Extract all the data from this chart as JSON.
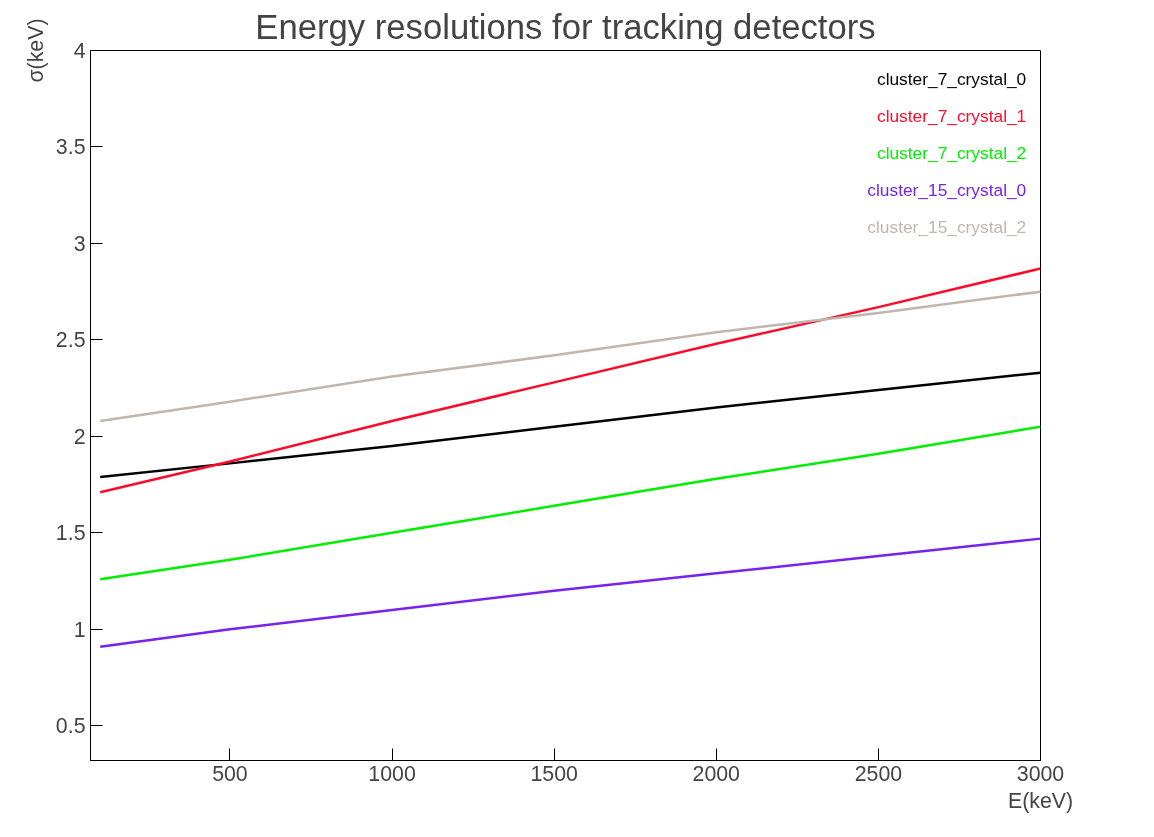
{
  "chart_data": {
    "type": "line",
    "title": "Energy resolutions for tracking detectors",
    "xlabel": "E(keV)",
    "ylabel": "σ(keV)",
    "x": [
      100,
      500,
      1000,
      1500,
      2000,
      2500,
      3000
    ],
    "series": [
      {
        "name": "cluster_7_crystal_0",
        "color": "#000000",
        "values": [
          1.79,
          1.86,
          1.95,
          2.05,
          2.15,
          2.24,
          2.33
        ]
      },
      {
        "name": "cluster_7_crystal_1",
        "color": "#ff0a2a",
        "values": [
          1.71,
          1.87,
          2.08,
          2.28,
          2.48,
          2.67,
          2.87
        ]
      },
      {
        "name": "cluster_7_crystal_2",
        "color": "#00ee00",
        "values": [
          1.26,
          1.36,
          1.5,
          1.64,
          1.78,
          1.91,
          2.05
        ]
      },
      {
        "name": "cluster_15_crystal_0",
        "color": "#7722ee",
        "values": [
          0.91,
          1.0,
          1.1,
          1.2,
          1.29,
          1.38,
          1.47
        ]
      },
      {
        "name": "cluster_15_crystal_2",
        "color": "#c0b6ae",
        "values": [
          2.08,
          2.18,
          2.31,
          2.42,
          2.54,
          2.64,
          2.75
        ]
      }
    ],
    "xlim": [
      70,
      3000
    ],
    "ylim": [
      0.32,
      4
    ],
    "xticks": [
      500,
      1000,
      1500,
      2000,
      2500,
      3000
    ],
    "yticks": [
      0.5,
      1,
      1.5,
      2,
      2.5,
      3,
      3.5,
      4
    ],
    "grid": false,
    "legend": "top right",
    "marker": "none",
    "line_style": "solid"
  }
}
